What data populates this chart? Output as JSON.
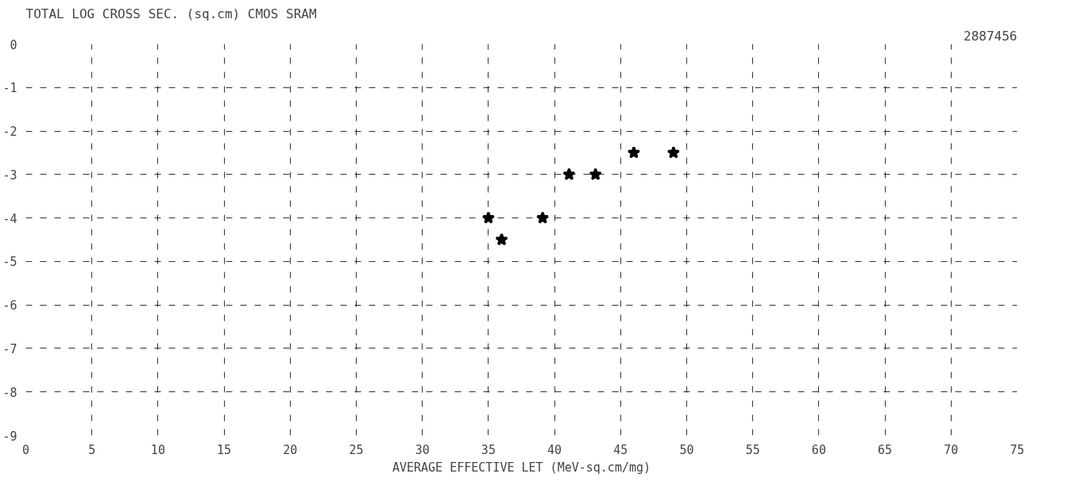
{
  "chart_data": {
    "type": "scatter",
    "title": "TOTAL LOG CROSS SEC. (sq.cm) CMOS SRAM",
    "xlabel": "AVERAGE EFFECTIVE LET (MeV-sq.cm/mg)",
    "annotations": [
      "2887456"
    ],
    "x": [
      46,
      49,
      41.1,
      43.1,
      35,
      39.1,
      36
    ],
    "values": [
      -2.5,
      -2.5,
      -3,
      -3,
      -4,
      -4,
      -4.5
    ],
    "color": "#000000",
    "marker": "star",
    "grid": true,
    "xlim": [
      0,
      75
    ],
    "xticks": [
      0,
      5,
      10,
      15,
      20,
      25,
      30,
      35,
      40,
      45,
      50,
      55,
      60,
      65,
      70,
      75
    ],
    "ylim": [
      -9,
      0
    ],
    "yticks": [
      0,
      -1,
      -2,
      -3,
      -4,
      -5,
      -6,
      -7,
      -8,
      -9
    ]
  }
}
